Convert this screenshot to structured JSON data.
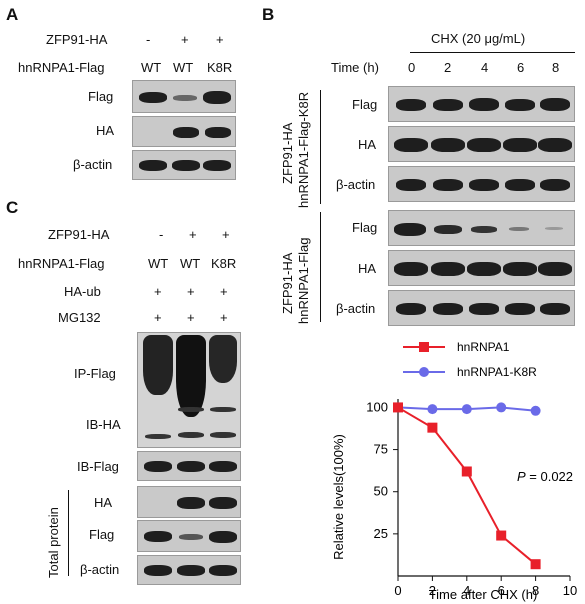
{
  "panelA": {
    "letter": "A",
    "row1_label": "ZFP91-HA",
    "row1_vals": [
      "-",
      "+",
      "+"
    ],
    "row2_label": "hnRNPA1-Flag",
    "row2_vals": [
      "WT",
      "WT",
      "K8R"
    ],
    "blots": [
      "Flag",
      "HA",
      "β-actin"
    ]
  },
  "panelB": {
    "letter": "B",
    "treatment": "CHX (20 μg/mL)",
    "time_label": "Time (h)",
    "times": [
      "0",
      "2",
      "4",
      "6",
      "8"
    ],
    "group1_line1": "ZFP91-HA",
    "group1_line2": "hnRNPA1-Flag-K8R",
    "group2_line1": "ZFP91-HA",
    "group2_line2": "hnRNPA1-Flag",
    "blots": [
      "Flag",
      "HA",
      "β-actin"
    ]
  },
  "panelC": {
    "letter": "C",
    "row1_label": "ZFP91-HA",
    "row1_vals": [
      "-",
      "+",
      "+"
    ],
    "row2_label": "hnRNPA1-Flag",
    "row2_vals": [
      "WT",
      "WT",
      "K8R"
    ],
    "row3_label": "HA-ub",
    "row3_vals": [
      "+",
      "+",
      "+"
    ],
    "row4_label": "MG132",
    "row4_vals": [
      "+",
      "+",
      "+"
    ],
    "ip_label1": "IP-Flag",
    "ip_label2": "IB-HA",
    "ib_flag": "IB-Flag",
    "total_protein": "Total protein",
    "total_blots": [
      "HA",
      "Flag",
      "β-actin"
    ]
  },
  "chart_data": {
    "type": "line",
    "xlabel": "Time after CHX (h)",
    "ylabel": "Relative levels(100%)",
    "xlim": [
      0,
      10
    ],
    "ylim": [
      0,
      105
    ],
    "xticks": [
      "0",
      "2",
      "4",
      "6",
      "8",
      "10"
    ],
    "yticks": [
      "25",
      "50",
      "75",
      "100"
    ],
    "annotation_italic": "P",
    "annotation_rest": " = 0.022",
    "legend_position": "top",
    "series": [
      {
        "name": "hnRNPA1",
        "color": "#e8202a",
        "marker": "square",
        "x": [
          0,
          2,
          4,
          6,
          8
        ],
        "y": [
          100,
          88,
          62,
          24,
          7
        ]
      },
      {
        "name": "hnRNPA1-K8R",
        "color": "#6a6ae8",
        "marker": "circle",
        "x": [
          0,
          2,
          4,
          6,
          8
        ],
        "y": [
          100,
          99,
          99,
          100,
          98
        ]
      }
    ]
  }
}
